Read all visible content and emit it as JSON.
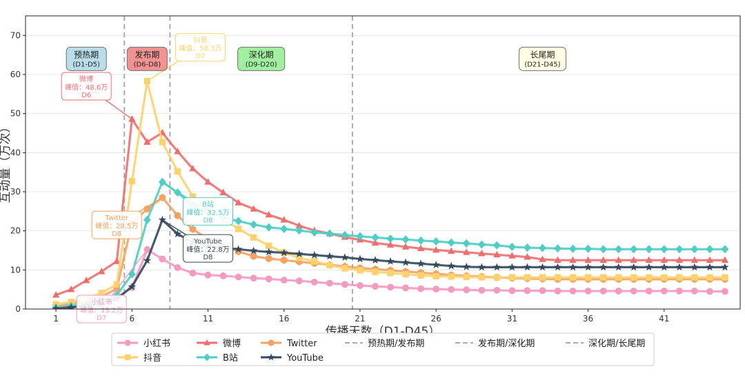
{
  "chart_data": {
    "type": "line",
    "title": "",
    "xlabel": "传播天数（D1-D45）",
    "ylabel": "互动量（万次）",
    "xlim": [
      -1,
      46
    ],
    "ylim": [
      0,
      75
    ],
    "xticks": [
      1,
      6,
      11,
      16,
      21,
      26,
      31,
      36,
      41
    ],
    "yticks": [
      0,
      10,
      20,
      30,
      40,
      50,
      60,
      70
    ],
    "grid": true,
    "legend_position": "bottom",
    "series": [
      {
        "name": "小红书",
        "color": "#f49ac1",
        "marker": "circle",
        "values": [
          0.3,
          0.6,
          1.0,
          1.8,
          3.0,
          5.5,
          15.2,
          12.8,
          10.6,
          9.2,
          8.7,
          8.5,
          8.2,
          7.9,
          7.7,
          7.4,
          7.2,
          6.9,
          6.6,
          6.3,
          6.0,
          5.8,
          5.6,
          5.4,
          5.2,
          5.1,
          5.0,
          4.9,
          4.8,
          4.8,
          4.7,
          4.7,
          4.7,
          4.6,
          4.6,
          4.6,
          4.6,
          4.6,
          4.6,
          4.6,
          4.6,
          4.6,
          4.6,
          4.5,
          4.5
        ]
      },
      {
        "name": "微博",
        "color": "#ee6e6e",
        "marker": "triangle",
        "values": [
          3.6,
          5.0,
          7.3,
          9.6,
          12.2,
          48.6,
          42.7,
          45.1,
          40.3,
          35.9,
          32.5,
          29.8,
          27.2,
          25.6,
          24.1,
          22.8,
          21.3,
          20.1,
          19.3,
          18.4,
          17.7,
          16.9,
          16.4,
          15.9,
          15.5,
          15.1,
          14.8,
          14.5,
          14.2,
          13.9,
          13.6,
          13.3,
          12.7,
          12.5,
          12.5,
          12.5,
          12.5,
          12.5,
          12.5,
          12.5,
          12.5,
          12.5,
          12.5,
          12.5,
          12.5
        ]
      },
      {
        "name": "Twitter",
        "color": "#f4a261",
        "marker": "hexagon",
        "values": [
          0.8,
          1.3,
          2.0,
          3.2,
          5.2,
          22.0,
          25.6,
          28.5,
          23.9,
          20.4,
          17.9,
          16.1,
          14.7,
          13.5,
          12.9,
          12.5,
          12.1,
          11.7,
          11.3,
          10.9,
          10.5,
          10.2,
          9.9,
          9.6,
          9.3,
          9.0,
          8.7,
          8.5,
          8.3,
          8.1,
          7.9,
          7.8,
          7.7,
          7.6,
          7.6,
          7.6,
          7.6,
          7.6,
          7.6,
          7.6,
          7.6,
          7.6,
          7.6,
          7.6,
          7.6
        ]
      },
      {
        "name": "抖音",
        "color": "#fdd26e",
        "marker": "square",
        "values": [
          1.2,
          1.8,
          2.7,
          4.1,
          6.3,
          32.7,
          58.3,
          42.7,
          35.2,
          28.8,
          25.1,
          23.0,
          20.5,
          18.3,
          16.2,
          14.4,
          13.1,
          12.2,
          11.2,
          10.4,
          9.9,
          9.5,
          9.2,
          8.9,
          8.6,
          8.4,
          8.3,
          8.2,
          8.1,
          8.1,
          8.1,
          8.1,
          8.1,
          8.1,
          8.1,
          8.1,
          8.1,
          8.1,
          8.1,
          8.1,
          8.1,
          8.1,
          8.1,
          8.1,
          8.1
        ]
      },
      {
        "name": "B站",
        "color": "#4ecdc4",
        "marker": "diamond",
        "values": [
          0.4,
          0.8,
          1.2,
          2.2,
          3.5,
          8.9,
          22.8,
          32.5,
          29.8,
          26.5,
          24.6,
          23.4,
          22.5,
          21.6,
          20.9,
          20.5,
          20.1,
          19.6,
          19.3,
          18.9,
          18.6,
          18.3,
          18.0,
          17.8,
          17.5,
          17.3,
          17.0,
          16.8,
          16.5,
          16.3,
          15.9,
          15.7,
          15.6,
          15.5,
          15.4,
          15.4,
          15.3,
          15.3,
          15.3,
          15.3,
          15.3,
          15.3,
          15.3,
          15.3,
          15.3
        ]
      },
      {
        "name": "YouTube",
        "color": "#34495e",
        "marker": "star",
        "values": [
          0.1,
          0.4,
          0.9,
          1.2,
          2.6,
          5.7,
          12.4,
          22.8,
          19.2,
          17.1,
          16.2,
          15.7,
          15.3,
          14.9,
          14.6,
          14.4,
          14.1,
          13.8,
          13.5,
          13.2,
          12.8,
          12.5,
          12.2,
          11.9,
          11.6,
          11.3,
          11.0,
          10.8,
          10.7,
          10.7,
          10.7,
          10.7,
          10.7,
          10.7,
          10.7,
          10.7,
          10.7,
          10.7,
          10.7,
          10.7,
          10.7,
          10.7,
          10.7,
          10.7,
          10.7
        ]
      }
    ],
    "phase_boundaries": [
      {
        "x": 5.5,
        "label": "预热期/发布期"
      },
      {
        "x": 8.5,
        "label": "发布期/深化期"
      },
      {
        "x": 20.5,
        "label": "深化期/长尾期"
      }
    ],
    "phases": [
      {
        "title": "预热期",
        "range": "(D1-D5)",
        "x": 3,
        "y": 64,
        "bg": "#add8e6"
      },
      {
        "title": "发布期",
        "range": "(D6-D8)",
        "x": 7,
        "y": 64,
        "bg": "#f08080"
      },
      {
        "title": "深化期",
        "range": "(D9-D20)",
        "x": 14.5,
        "y": 64,
        "bg": "#90ee90"
      },
      {
        "title": "长尾期",
        "range": "(D21-D45)",
        "x": 33,
        "y": 64,
        "bg": "#fffde0"
      }
    ],
    "annotations": [
      {
        "platform": "微博",
        "label": "峰值：48.6万",
        "day": "D6",
        "peak_x": 6,
        "peak_y": 48.6,
        "text_x": 3,
        "text_y": 57,
        "color": "#ee6e6e"
      },
      {
        "platform": "抖音",
        "label": "峰值：58.3万",
        "day": "D7",
        "peak_x": 7,
        "peak_y": 58.3,
        "text_x": 10.5,
        "text_y": 67,
        "color": "#fdd26e"
      },
      {
        "platform": "B站",
        "label": "峰值：32.5万",
        "day": "D8",
        "peak_x": 8,
        "peak_y": 32.5,
        "text_x": 11,
        "text_y": 25,
        "color": "#4ecdc4"
      },
      {
        "platform": "Twitter",
        "label": "峰值：28.5万",
        "day": "D8",
        "peak_x": 8,
        "peak_y": 28.5,
        "text_x": 5,
        "text_y": 21.5,
        "color": "#f4a261"
      },
      {
        "platform": "YouTube",
        "label": "峰值：22.8万",
        "day": "D8",
        "peak_x": 8,
        "peak_y": 22.8,
        "text_x": 11,
        "text_y": 15.5,
        "color": "#34495e"
      },
      {
        "platform": "小红书",
        "label": "峰值：15.2万",
        "day": "D7",
        "peak_x": 7,
        "peak_y": 15.2,
        "text_x": 4,
        "text_y": 0,
        "color": "#f49ac1"
      }
    ],
    "legend_order": [
      "小红书",
      "抖音",
      "微博",
      "B站",
      "Twitter",
      "YouTube"
    ]
  }
}
